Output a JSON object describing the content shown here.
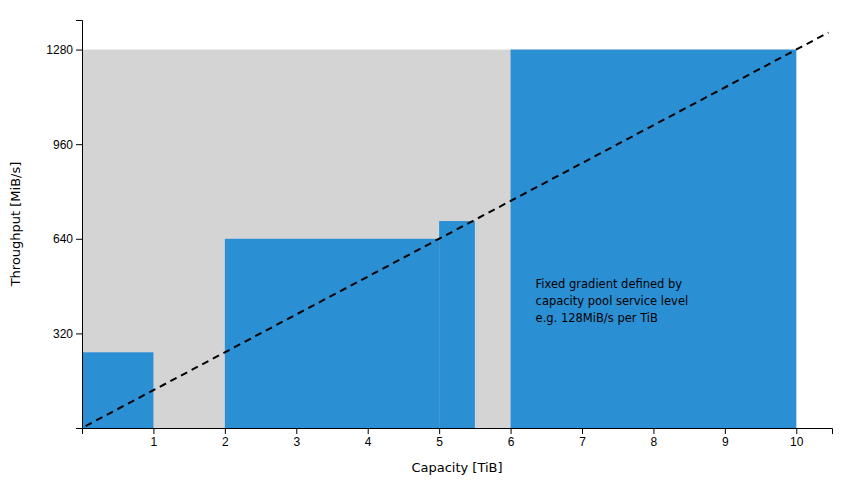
{
  "chart_data": {
    "type": "bar",
    "xlabel": "Capacity [TiB]",
    "ylabel": "Throughput [MiB/s]",
    "xlim": [
      0,
      10.5
    ],
    "ylim": [
      0,
      1380
    ],
    "xticks": [
      1,
      2,
      3,
      4,
      5,
      6,
      7,
      8,
      9,
      10
    ],
    "yticks": [
      320,
      640,
      960,
      1280
    ],
    "series": [
      {
        "type": "bar",
        "color": "#d4d4d4",
        "x": [
          0
        ],
        "widths": [
          10.0
        ],
        "values": [
          1280
        ]
      },
      {
        "type": "bar",
        "color": "#2b8fd4",
        "x": [
          0,
          2,
          5,
          6
        ],
        "widths": [
          1,
          3,
          0.5,
          4.0
        ],
        "values": [
          256,
          640,
          700,
          1280
        ]
      },
      {
        "type": "line",
        "color": "#000000",
        "line_style": "dashed",
        "x": [
          0.05,
          10.45
        ],
        "values": [
          6.4,
          1337.6
        ]
      }
    ],
    "annotation": {
      "text": "Fixed gradient defined by\ncapacity pool service level\ne.g. 128MiB/s per TiB",
      "x": 6.35,
      "y": 430
    }
  }
}
